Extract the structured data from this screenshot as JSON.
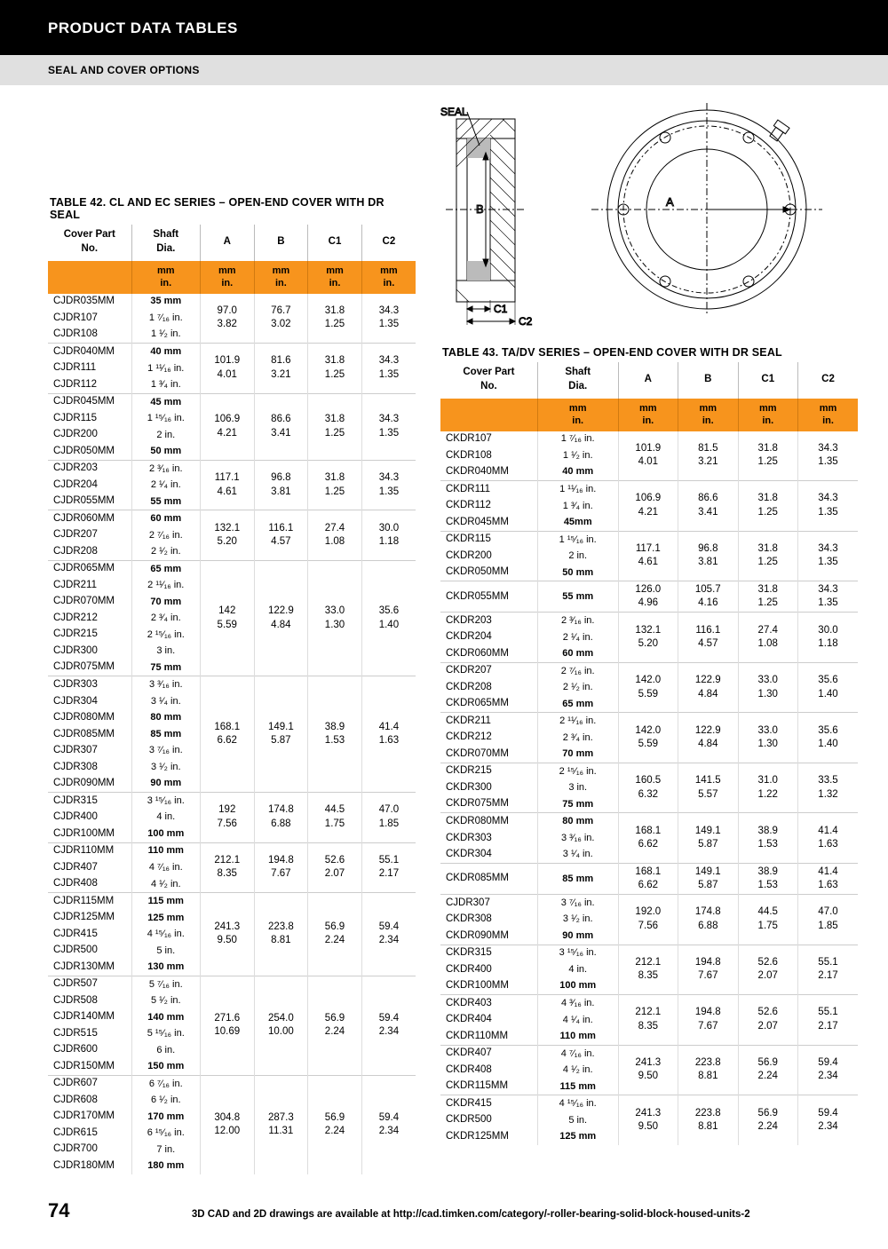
{
  "header": {
    "title": "PRODUCT DATA TABLES",
    "subtitle": "SEAL AND COVER OPTIONS"
  },
  "diagram": {
    "label_seal": "SEAL",
    "label_A": "A",
    "label_B": "B",
    "label_C1": "C1",
    "label_C2": "C2"
  },
  "table42": {
    "title": "TABLE 42. CL AND EC SERIES – OPEN-END COVER WITH DR SEAL",
    "columns": [
      "Cover Part\nNo.",
      "Shaft\nDia.",
      "A",
      "B",
      "C1",
      "C2"
    ],
    "units_mm": "mm",
    "units_in": "in.",
    "groups": [
      {
        "rows": [
          [
            "CJDR035MM",
            "35 mm",
            true
          ],
          [
            "CJDR107",
            "1 ⁷⁄₁₆ in.",
            false
          ],
          [
            "CJDR108",
            "1 ¹⁄₂ in.",
            false
          ]
        ],
        "A": [
          "97.0",
          "3.82"
        ],
        "B": [
          "76.7",
          "3.02"
        ],
        "C1": [
          "31.8",
          "1.25"
        ],
        "C2": [
          "34.3",
          "1.35"
        ]
      },
      {
        "rows": [
          [
            "CJDR040MM",
            "40 mm",
            true
          ],
          [
            "CJDR111",
            "1 ¹¹⁄₁₆ in.",
            false
          ],
          [
            "CJDR112",
            "1 ³⁄₄ in.",
            false
          ]
        ],
        "A": [
          "101.9",
          "4.01"
        ],
        "B": [
          "81.6",
          "3.21"
        ],
        "C1": [
          "31.8",
          "1.25"
        ],
        "C2": [
          "34.3",
          "1.35"
        ]
      },
      {
        "rows": [
          [
            "CJDR045MM",
            "45 mm",
            true
          ],
          [
            "CJDR115",
            "1 ¹⁵⁄₁₆ in.",
            false
          ],
          [
            "CJDR200",
            "2 in.",
            false
          ],
          [
            "CJDR050MM",
            "50 mm",
            true
          ]
        ],
        "A": [
          "106.9",
          "4.21"
        ],
        "B": [
          "86.6",
          "3.41"
        ],
        "C1": [
          "31.8",
          "1.25"
        ],
        "C2": [
          "34.3",
          "1.35"
        ]
      },
      {
        "rows": [
          [
            "CJDR203",
            "2 ³⁄₁₆ in.",
            false
          ],
          [
            "CJDR204",
            "2 ¹⁄₄ in.",
            false
          ],
          [
            "CJDR055MM",
            "55 mm",
            true
          ]
        ],
        "A": [
          "117.1",
          "4.61"
        ],
        "B": [
          "96.8",
          "3.81"
        ],
        "C1": [
          "31.8",
          "1.25"
        ],
        "C2": [
          "34.3",
          "1.35"
        ]
      },
      {
        "rows": [
          [
            "CJDR060MM",
            "60 mm",
            true
          ],
          [
            "CJDR207",
            "2 ⁷⁄₁₆ in.",
            false
          ],
          [
            "CJDR208",
            "2 ¹⁄₂ in.",
            false
          ]
        ],
        "A": [
          "132.1",
          "5.20"
        ],
        "B": [
          "116.1",
          "4.57"
        ],
        "C1": [
          "27.4",
          "1.08"
        ],
        "C2": [
          "30.0",
          "1.18"
        ]
      },
      {
        "rows": [
          [
            "CJDR065MM",
            "65 mm",
            true
          ],
          [
            "CJDR211",
            "2 ¹¹⁄₁₆ in.",
            false
          ],
          [
            "CJDR070MM",
            "70 mm",
            true
          ],
          [
            "CJDR212",
            "2 ³⁄₄ in.",
            false
          ],
          [
            "CJDR215",
            "2 ¹⁵⁄₁₆ in.",
            false
          ],
          [
            "CJDR300",
            "3 in.",
            false
          ],
          [
            "CJDR075MM",
            "75 mm",
            true
          ]
        ],
        "A": [
          "142",
          "5.59"
        ],
        "B": [
          "122.9",
          "4.84"
        ],
        "C1": [
          "33.0",
          "1.30"
        ],
        "C2": [
          "35.6",
          "1.40"
        ]
      },
      {
        "rows": [
          [
            "CJDR303",
            "3 ³⁄₁₆ in.",
            false
          ],
          [
            "CJDR304",
            "3 ¹⁄₄ in.",
            false
          ],
          [
            "CJDR080MM",
            "80 mm",
            true
          ],
          [
            "CJDR085MM",
            "85 mm",
            true
          ],
          [
            "CJDR307",
            "3 ⁷⁄₁₆ in.",
            false
          ],
          [
            "CJDR308",
            "3 ¹⁄₂ in.",
            false
          ],
          [
            "CJDR090MM",
            "90 mm",
            true
          ]
        ],
        "A": [
          "168.1",
          "6.62"
        ],
        "B": [
          "149.1",
          "5.87"
        ],
        "C1": [
          "38.9",
          "1.53"
        ],
        "C2": [
          "41.4",
          "1.63"
        ]
      },
      {
        "rows": [
          [
            "CJDR315",
            "3 ¹⁵⁄₁₆ in.",
            false
          ],
          [
            "CJDR400",
            "4 in.",
            false
          ],
          [
            "CJDR100MM",
            "100 mm",
            true
          ]
        ],
        "A": [
          "192",
          "7.56"
        ],
        "B": [
          "174.8",
          "6.88"
        ],
        "C1": [
          "44.5",
          "1.75"
        ],
        "C2": [
          "47.0",
          "1.85"
        ]
      },
      {
        "rows": [
          [
            "CJDR110MM",
            "110 mm",
            true
          ],
          [
            "CJDR407",
            "4 ⁷⁄₁₆ in.",
            false
          ],
          [
            "CJDR408",
            "4 ¹⁄₂ in.",
            false
          ]
        ],
        "A": [
          "212.1",
          "8.35"
        ],
        "B": [
          "194.8",
          "7.67"
        ],
        "C1": [
          "52.6",
          "2.07"
        ],
        "C2": [
          "55.1",
          "2.17"
        ]
      },
      {
        "rows": [
          [
            "CJDR115MM",
            "115 mm",
            true
          ],
          [
            "CJDR125MM",
            "125 mm",
            true
          ],
          [
            "CJDR415",
            "4 ¹⁵⁄₁₆ in.",
            false
          ],
          [
            "CJDR500",
            "5 in.",
            false
          ],
          [
            "CJDR130MM",
            "130 mm",
            true
          ]
        ],
        "A": [
          "241.3",
          "9.50"
        ],
        "B": [
          "223.8",
          "8.81"
        ],
        "C1": [
          "56.9",
          "2.24"
        ],
        "C2": [
          "59.4",
          "2.34"
        ]
      },
      {
        "rows": [
          [
            "CJDR507",
            "5 ⁷⁄₁₆ in.",
            false
          ],
          [
            "CJDR508",
            "5 ¹⁄₂ in.",
            false
          ],
          [
            "CJDR140MM",
            "140 mm",
            true
          ],
          [
            "CJDR515",
            "5 ¹⁵⁄₁₆ in.",
            false
          ],
          [
            "CJDR600",
            "6 in.",
            false
          ],
          [
            "CJDR150MM",
            "150 mm",
            true
          ]
        ],
        "A": [
          "271.6",
          "10.69"
        ],
        "B": [
          "254.0",
          "10.00"
        ],
        "C1": [
          "56.9",
          "2.24"
        ],
        "C2": [
          "59.4",
          "2.34"
        ]
      },
      {
        "rows": [
          [
            "CJDR607",
            "6 ⁷⁄₁₆ in.",
            false
          ],
          [
            "CJDR608",
            "6 ¹⁄₂ in.",
            false
          ],
          [
            "CJDR170MM",
            "170 mm",
            true
          ],
          [
            "CJDR615",
            "6 ¹⁵⁄₁₆ in.",
            false
          ],
          [
            "CJDR700",
            "7 in.",
            false
          ],
          [
            "CJDR180MM",
            "180 mm",
            true
          ]
        ],
        "A": [
          "304.8",
          "12.00"
        ],
        "B": [
          "287.3",
          "11.31"
        ],
        "C1": [
          "56.9",
          "2.24"
        ],
        "C2": [
          "59.4",
          "2.34"
        ]
      }
    ]
  },
  "table43": {
    "title": "TABLE 43. TA/DV SERIES – OPEN-END COVER WITH DR SEAL",
    "columns": [
      "Cover Part\nNo.",
      "Shaft\nDia.",
      "A",
      "B",
      "C1",
      "C2"
    ],
    "units_mm": "mm",
    "units_in": "in.",
    "groups": [
      {
        "rows": [
          [
            "CKDR107",
            "1 ⁷⁄₁₆ in.",
            false
          ],
          [
            "CKDR108",
            "1 ¹⁄₂ in.",
            false
          ],
          [
            "CKDR040MM",
            "40 mm",
            true
          ]
        ],
        "A": [
          "101.9",
          "4.01"
        ],
        "B": [
          "81.5",
          "3.21"
        ],
        "C1": [
          "31.8",
          "1.25"
        ],
        "C2": [
          "34.3",
          "1.35"
        ]
      },
      {
        "rows": [
          [
            "CKDR111",
            "1 ¹¹⁄₁₆ in.",
            false
          ],
          [
            "CKDR112",
            "1 ³⁄₄ in.",
            false
          ],
          [
            "CKDR045MM",
            "45mm",
            true
          ]
        ],
        "A": [
          "106.9",
          "4.21"
        ],
        "B": [
          "86.6",
          "3.41"
        ],
        "C1": [
          "31.8",
          "1.25"
        ],
        "C2": [
          "34.3",
          "1.35"
        ]
      },
      {
        "rows": [
          [
            "CKDR115",
            "1 ¹⁵⁄₁₆ in.",
            false
          ],
          [
            "CKDR200",
            "2 in.",
            false
          ],
          [
            "CKDR050MM",
            "50 mm",
            true
          ]
        ],
        "A": [
          "117.1",
          "4.61"
        ],
        "B": [
          "96.8",
          "3.81"
        ],
        "C1": [
          "31.8",
          "1.25"
        ],
        "C2": [
          "34.3",
          "1.35"
        ]
      },
      {
        "rows": [
          [
            "CKDR055MM",
            "55 mm",
            true
          ]
        ],
        "A": [
          "126.0",
          "4.96"
        ],
        "B": [
          "105.7",
          "4.16"
        ],
        "C1": [
          "31.8",
          "1.25"
        ],
        "C2": [
          "34.3",
          "1.35"
        ]
      },
      {
        "rows": [
          [
            "CKDR203",
            "2 ³⁄₁₆ in.",
            false
          ],
          [
            "CKDR204",
            "2 ¹⁄₄ in.",
            false
          ],
          [
            "CKDR060MM",
            "60 mm",
            true
          ]
        ],
        "A": [
          "132.1",
          "5.20"
        ],
        "B": [
          "116.1",
          "4.57"
        ],
        "C1": [
          "27.4",
          "1.08"
        ],
        "C2": [
          "30.0",
          "1.18"
        ]
      },
      {
        "rows": [
          [
            "CKDR207",
            "2 ⁷⁄₁₆ in.",
            false
          ],
          [
            "CKDR208",
            "2 ¹⁄₂ in.",
            false
          ],
          [
            "CKDR065MM",
            "65 mm",
            true
          ]
        ],
        "A": [
          "142.0",
          "5.59"
        ],
        "B": [
          "122.9",
          "4.84"
        ],
        "C1": [
          "33.0",
          "1.30"
        ],
        "C2": [
          "35.6",
          "1.40"
        ]
      },
      {
        "rows": [
          [
            "CKDR211",
            "2 ¹¹⁄₁₆ in.",
            false
          ],
          [
            "CKDR212",
            "2 ³⁄₄ in.",
            false
          ],
          [
            "CKDR070MM",
            "70 mm",
            true
          ]
        ],
        "A": [
          "142.0",
          "5.59"
        ],
        "B": [
          "122.9",
          "4.84"
        ],
        "C1": [
          "33.0",
          "1.30"
        ],
        "C2": [
          "35.6",
          "1.40"
        ]
      },
      {
        "rows": [
          [
            "CKDR215",
            "2 ¹⁵⁄₁₆ in.",
            false
          ],
          [
            "CKDR300",
            "3 in.",
            false
          ],
          [
            "CKDR075MM",
            "75 mm",
            true
          ]
        ],
        "A": [
          "160.5",
          "6.32"
        ],
        "B": [
          "141.5",
          "5.57"
        ],
        "C1": [
          "31.0",
          "1.22"
        ],
        "C2": [
          "33.5",
          "1.32"
        ]
      },
      {
        "rows": [
          [
            "CKDR080MM",
            "80 mm",
            true
          ],
          [
            "CKDR303",
            "3 ³⁄₁₆ in.",
            false
          ],
          [
            "CKDR304",
            "3 ¹⁄₄ in.",
            false
          ]
        ],
        "A": [
          "168.1",
          "6.62"
        ],
        "B": [
          "149.1",
          "5.87"
        ],
        "C1": [
          "38.9",
          "1.53"
        ],
        "C2": [
          "41.4",
          "1.63"
        ]
      },
      {
        "rows": [
          [
            "CKDR085MM",
            "85 mm",
            true
          ]
        ],
        "A": [
          "168.1",
          "6.62"
        ],
        "B": [
          "149.1",
          "5.87"
        ],
        "C1": [
          "38.9",
          "1.53"
        ],
        "C2": [
          "41.4",
          "1.63"
        ]
      },
      {
        "rows": [
          [
            "CJDR307",
            "3 ⁷⁄₁₆ in.",
            false
          ],
          [
            "CKDR308",
            "3 ¹⁄₂ in.",
            false
          ],
          [
            "CKDR090MM",
            "90 mm",
            true
          ]
        ],
        "A": [
          "192.0",
          "7.56"
        ],
        "B": [
          "174.8",
          "6.88"
        ],
        "C1": [
          "44.5",
          "1.75"
        ],
        "C2": [
          "47.0",
          "1.85"
        ]
      },
      {
        "rows": [
          [
            "CKDR315",
            "3 ¹⁵⁄₁₆ in.",
            false
          ],
          [
            "CKDR400",
            "4 in.",
            false
          ],
          [
            "CKDR100MM",
            "100 mm",
            true
          ]
        ],
        "A": [
          "212.1",
          "8.35"
        ],
        "B": [
          "194.8",
          "7.67"
        ],
        "C1": [
          "52.6",
          "2.07"
        ],
        "C2": [
          "55.1",
          "2.17"
        ]
      },
      {
        "rows": [
          [
            "CKDR403",
            "4 ³⁄₁₆ in.",
            false
          ],
          [
            "CKDR404",
            "4 ¹⁄₄ in.",
            false
          ],
          [
            "CKDR110MM",
            "110 mm",
            true
          ]
        ],
        "A": [
          "212.1",
          "8.35"
        ],
        "B": [
          "194.8",
          "7.67"
        ],
        "C1": [
          "52.6",
          "2.07"
        ],
        "C2": [
          "55.1",
          "2.17"
        ]
      },
      {
        "rows": [
          [
            "CKDR407",
            "4 ⁷⁄₁₆ in.",
            false
          ],
          [
            "CKDR408",
            "4 ¹⁄₂ in.",
            false
          ],
          [
            "CKDR115MM",
            "115 mm",
            true
          ]
        ],
        "A": [
          "241.3",
          "9.50"
        ],
        "B": [
          "223.8",
          "8.81"
        ],
        "C1": [
          "56.9",
          "2.24"
        ],
        "C2": [
          "59.4",
          "2.34"
        ]
      },
      {
        "rows": [
          [
            "CKDR415",
            "4 ¹⁵⁄₁₆ in.",
            false
          ],
          [
            "CKDR500",
            "5 in.",
            false
          ],
          [
            "CKDR125MM",
            "125 mm",
            true
          ]
        ],
        "A": [
          "241.3",
          "9.50"
        ],
        "B": [
          "223.8",
          "8.81"
        ],
        "C1": [
          "56.9",
          "2.24"
        ],
        "C2": [
          "59.4",
          "2.34"
        ]
      }
    ]
  },
  "footer": {
    "page_num": "74",
    "text": "3D CAD and 2D drawings are available at http://cad.timken.com/category/-roller-bearing-solid-block-housed-units-2"
  },
  "colors": {
    "orange": "#f7941d",
    "black": "#000000",
    "gray": "#e0e0e0",
    "rule": "#cccccc"
  }
}
